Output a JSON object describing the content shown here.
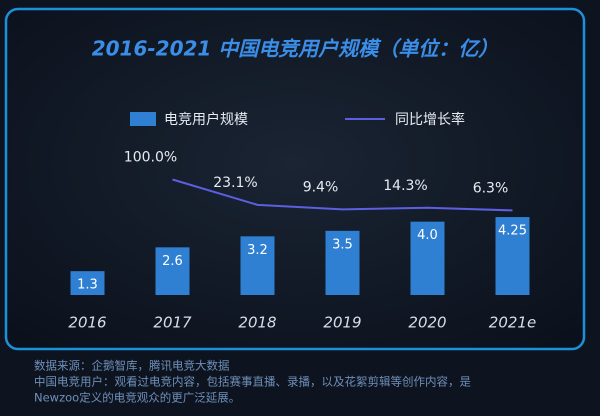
{
  "chart_data": {
    "type": "bar",
    "title": "2016-2021 中国电竞用户规模（单位：亿）",
    "categories": [
      "2016",
      "2017",
      "2018",
      "2019",
      "2020",
      "2021e"
    ],
    "series": [
      {
        "name": "电竞用户规模",
        "type": "bar",
        "color": "#2f80d2",
        "values": [
          1.3,
          2.6,
          3.2,
          3.5,
          4.0,
          4.25
        ],
        "value_labels": [
          "1.3",
          "2.6",
          "3.2",
          "3.5",
          "4.0",
          "4.25"
        ]
      },
      {
        "name": "同比增长率",
        "type": "line",
        "color": "#5b5fe0",
        "axis": "y2",
        "values": [
          null,
          100.0,
          23.1,
          9.4,
          14.3,
          6.3
        ],
        "value_labels": [
          null,
          "100.0%",
          "23.1%",
          "9.4%",
          "14.3%",
          "6.3%"
        ]
      }
    ],
    "ylim": [
      0,
      9
    ],
    "y2lim": [
      -250,
      250
    ],
    "notes": [
      "数据来源：企鹅智库，腾讯电竞大数据",
      "中国电竞用户：观看过电竞内容，包括赛事直播、录播，以及花絮剪辑等创作内容，是",
      "Newzoo定义的电竞观众的更广泛延展。"
    ]
  }
}
